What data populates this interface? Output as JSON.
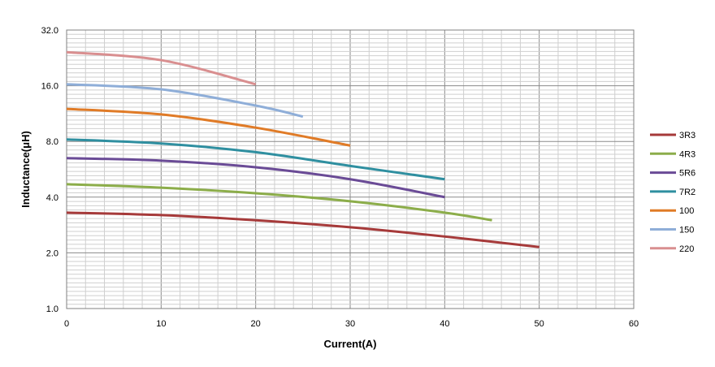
{
  "chart_data": {
    "type": "line",
    "xlabel": "Current(A)",
    "ylabel": "Inductance(μH)",
    "xlim": [
      0,
      60
    ],
    "ylim": [
      1.0,
      32.0
    ],
    "yscale": "log2",
    "x_ticks": [
      "0",
      "10",
      "20",
      "30",
      "40",
      "50",
      "60"
    ],
    "y_ticks": [
      "1.0",
      "2.0",
      "4.0",
      "8.0",
      "16.0",
      "32.0"
    ],
    "grid": true,
    "legend_position": "right",
    "series": [
      {
        "name": "3R3",
        "color": "#a63a3a",
        "x": [
          0,
          10,
          20,
          30,
          40,
          50
        ],
        "y": [
          3.3,
          3.2,
          3.0,
          2.75,
          2.45,
          2.15
        ]
      },
      {
        "name": "4R3",
        "color": "#8cad4a",
        "x": [
          0,
          10,
          20,
          30,
          40,
          45
        ],
        "y": [
          4.7,
          4.5,
          4.2,
          3.8,
          3.3,
          3.0
        ]
      },
      {
        "name": "5R6",
        "color": "#6a4b96",
        "x": [
          0,
          10,
          20,
          30,
          40
        ],
        "y": [
          6.5,
          6.3,
          5.8,
          5.0,
          4.0
        ]
      },
      {
        "name": "7R2",
        "color": "#2f8fa0",
        "x": [
          0,
          10,
          20,
          30,
          40
        ],
        "y": [
          8.2,
          7.8,
          7.0,
          5.9,
          5.0
        ]
      },
      {
        "name": "100",
        "color": "#e07b27",
        "x": [
          0,
          10,
          20,
          30
        ],
        "y": [
          12.0,
          11.2,
          9.5,
          7.6
        ]
      },
      {
        "name": "150",
        "color": "#8faed8",
        "x": [
          0,
          10,
          20,
          25
        ],
        "y": [
          16.3,
          15.3,
          12.5,
          10.9
        ]
      },
      {
        "name": "220",
        "color": "#d98f90",
        "x": [
          0,
          10,
          20
        ],
        "y": [
          24.3,
          22.0,
          16.3
        ]
      }
    ]
  }
}
